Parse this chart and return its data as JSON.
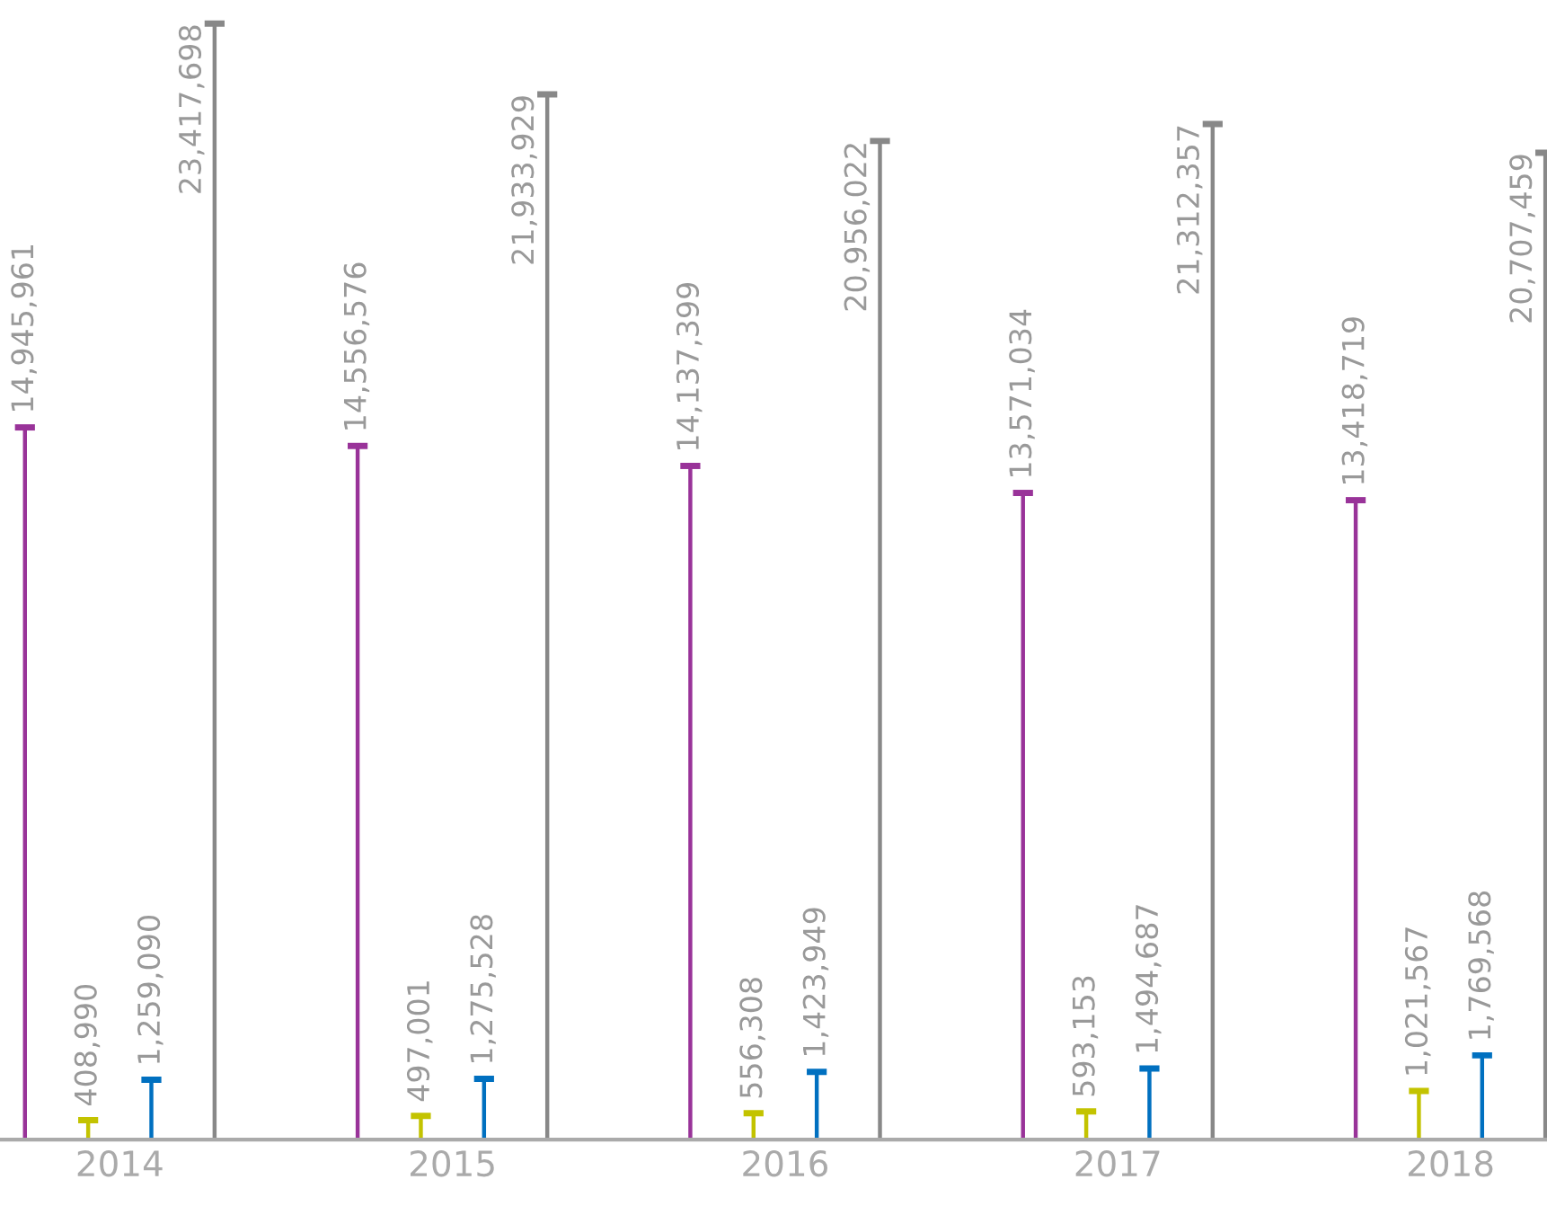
{
  "chart_data": {
    "type": "bar",
    "categories": [
      "2014",
      "2015",
      "2016",
      "2017",
      "2018"
    ],
    "series": [
      {
        "color": "#993399",
        "values": [
          14945961,
          14556576,
          14137399,
          13571034,
          13418719
        ],
        "value_labels": [
          "14,945,961",
          "14,556,576",
          "14,137,399",
          "13,571,034",
          "13,418,719"
        ]
      },
      {
        "color": "#c3c300",
        "values": [
          408990,
          497001,
          556308,
          593153,
          1021567
        ],
        "value_labels": [
          "408,990",
          "497,001",
          "556,308",
          "593,153",
          "1,021,567"
        ]
      },
      {
        "color": "#0070c0",
        "values": [
          1259090,
          1275528,
          1423949,
          1494687,
          1769568
        ],
        "value_labels": [
          "1,259,090",
          "1,275,528",
          "1,423,949",
          "1,494,687",
          "1,769,568"
        ]
      },
      {
        "color": "#888888",
        "values": [
          23417698,
          21933929,
          20956022,
          21312357,
          20707459
        ],
        "value_labels": [
          "23,417,698",
          "21,933,929",
          "20,956,022",
          "21,312,357",
          "20,707,459"
        ]
      }
    ],
    "grid": false,
    "legend": false
  }
}
